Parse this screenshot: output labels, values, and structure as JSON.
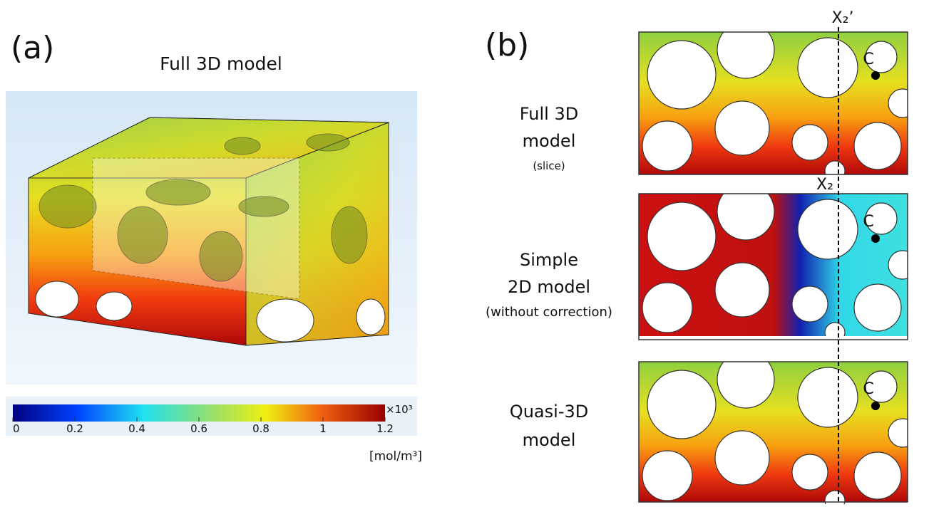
{
  "panel_a": {
    "label": "(a)",
    "title": "Full 3D model",
    "colorbar": {
      "ticks": [
        0,
        0.2,
        0.4,
        0.6,
        0.8,
        1,
        1.2
      ],
      "multiplier": "×10³",
      "unit": "[mol/m³]"
    }
  },
  "panel_b": {
    "label": "(b)",
    "rows": [
      {
        "lines": [
          "Full 3D",
          "model"
        ],
        "note": "(slice)",
        "point": "C",
        "line_label": "X₂’"
      },
      {
        "lines": [
          "Simple",
          "2D model"
        ],
        "note": "(without correction)",
        "point": "C",
        "line_label": "X₂"
      },
      {
        "lines": [
          "Quasi-3D",
          "model"
        ],
        "point": "C"
      }
    ]
  }
}
